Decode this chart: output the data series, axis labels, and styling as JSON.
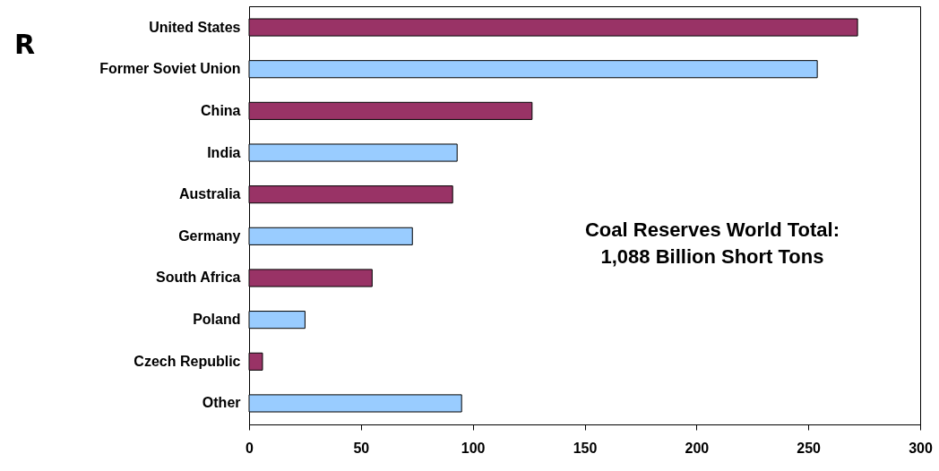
{
  "chart_data": {
    "type": "bar",
    "orientation": "horizontal",
    "categories": [
      "United States",
      "Former Soviet Union",
      "China",
      "India",
      "Australia",
      "Germany",
      "South Africa",
      "Poland",
      "Czech Republic",
      "Other"
    ],
    "values": [
      272,
      254,
      126.5,
      93,
      91,
      73,
      55,
      25,
      6,
      95
    ],
    "colors": [
      "#993366",
      "#99ccff",
      "#993366",
      "#99ccff",
      "#993366",
      "#99ccff",
      "#993366",
      "#99ccff",
      "#993366",
      "#99ccff"
    ],
    "xlim": [
      0,
      300
    ],
    "xticks": [
      0,
      50,
      100,
      150,
      200,
      250,
      300
    ],
    "grid": false,
    "annotations": [
      "R",
      "Coal Reserves World Total:",
      "1,088 Billion Short Tons"
    ]
  }
}
